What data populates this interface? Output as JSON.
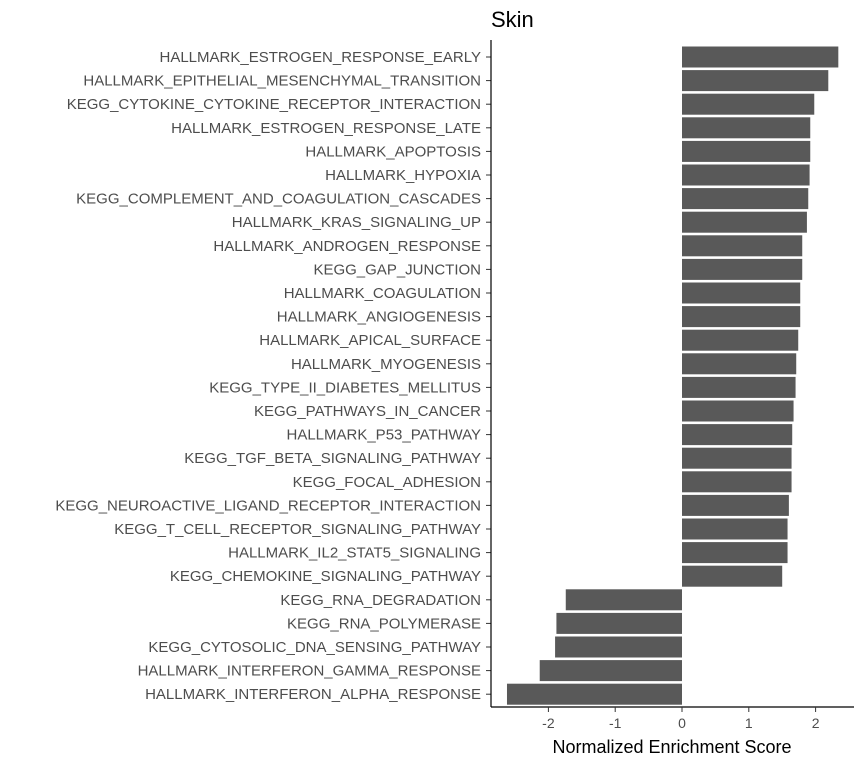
{
  "chart_data": {
    "type": "bar",
    "orientation": "horizontal",
    "title": "Skin",
    "xlabel": "Normalized Enrichment Score",
    "ylabel": "",
    "xlim": [
      -2.75,
      2.6
    ],
    "xticks": [
      -2,
      -1,
      0,
      1,
      2
    ],
    "xtick_labels": [
      "-2",
      "-1",
      "0",
      "1",
      "2"
    ],
    "grid": false,
    "legend": "none",
    "bar_color": "#595959",
    "categories": [
      "HALLMARK_ESTROGEN_RESPONSE_EARLY",
      "HALLMARK_EPITHELIAL_MESENCHYMAL_TRANSITION",
      "KEGG_CYTOKINE_CYTOKINE_RECEPTOR_INTERACTION",
      "HALLMARK_ESTROGEN_RESPONSE_LATE",
      "HALLMARK_APOPTOSIS",
      "HALLMARK_HYPOXIA",
      "KEGG_COMPLEMENT_AND_COAGULATION_CASCADES",
      "HALLMARK_KRAS_SIGNALING_UP",
      "HALLMARK_ANDROGEN_RESPONSE",
      "KEGG_GAP_JUNCTION",
      "HALLMARK_COAGULATION",
      "HALLMARK_ANGIOGENESIS",
      "HALLMARK_APICAL_SURFACE",
      "HALLMARK_MYOGENESIS",
      "KEGG_TYPE_II_DIABETES_MELLITUS",
      "KEGG_PATHWAYS_IN_CANCER",
      "HALLMARK_P53_PATHWAY",
      "KEGG_TGF_BETA_SIGNALING_PATHWAY",
      "KEGG_FOCAL_ADHESION",
      "KEGG_NEUROACTIVE_LIGAND_RECEPTOR_INTERACTION",
      "KEGG_T_CELL_RECEPTOR_SIGNALING_PATHWAY",
      "HALLMARK_IL2_STAT5_SIGNALING",
      "KEGG_CHEMOKINE_SIGNALING_PATHWAY",
      "KEGG_RNA_DEGRADATION",
      "KEGG_RNA_POLYMERASE",
      "KEGG_CYTOSOLIC_DNA_SENSING_PATHWAY",
      "HALLMARK_INTERFERON_GAMMA_RESPONSE",
      "HALLMARK_INTERFERON_ALPHA_RESPONSE"
    ],
    "values": [
      2.34,
      2.19,
      1.98,
      1.92,
      1.92,
      1.91,
      1.89,
      1.87,
      1.8,
      1.8,
      1.77,
      1.77,
      1.74,
      1.71,
      1.7,
      1.67,
      1.65,
      1.64,
      1.64,
      1.6,
      1.58,
      1.58,
      1.5,
      -1.74,
      -1.88,
      -1.9,
      -2.13,
      -2.62
    ]
  }
}
